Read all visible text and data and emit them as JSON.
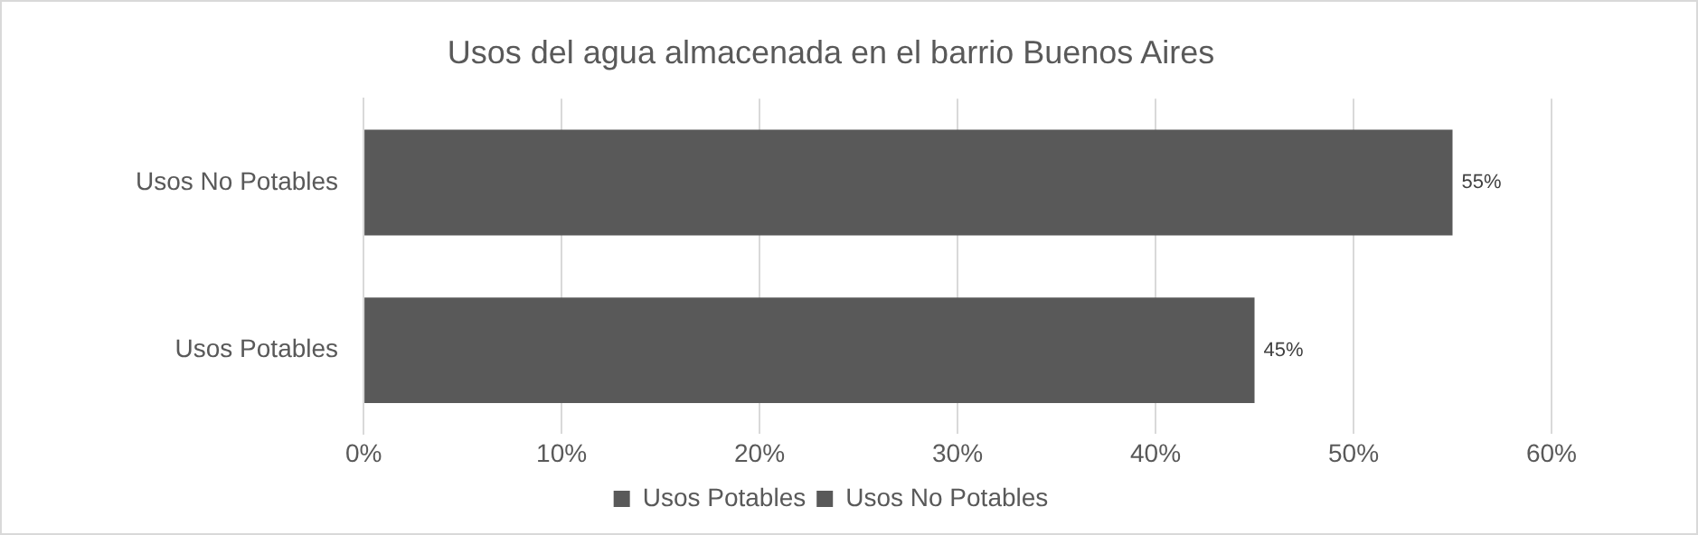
{
  "chart_data": {
    "type": "bar",
    "orientation": "horizontal",
    "title": "Usos del agua almacenada en el barrio Buenos Aires",
    "categories": [
      "Usos No Potables",
      "Usos Potables"
    ],
    "series": [
      {
        "name": "Usos Potables",
        "color": "#595959",
        "values": [
          null,
          45
        ],
        "value_labels": [
          null,
          "45%"
        ]
      },
      {
        "name": "Usos No Potables",
        "color": "#595959",
        "values": [
          55,
          null
        ],
        "value_labels": [
          "55%",
          null
        ]
      }
    ],
    "xlim": [
      0,
      60
    ],
    "xticks": [
      {
        "value": 0,
        "label": "0%"
      },
      {
        "value": 10,
        "label": "10%"
      },
      {
        "value": 20,
        "label": "20%"
      },
      {
        "value": 30,
        "label": "30%"
      },
      {
        "value": 40,
        "label": "40%"
      },
      {
        "value": 50,
        "label": "50%"
      },
      {
        "value": 60,
        "label": "60%"
      }
    ],
    "grid": "x",
    "legend": "bottom"
  }
}
